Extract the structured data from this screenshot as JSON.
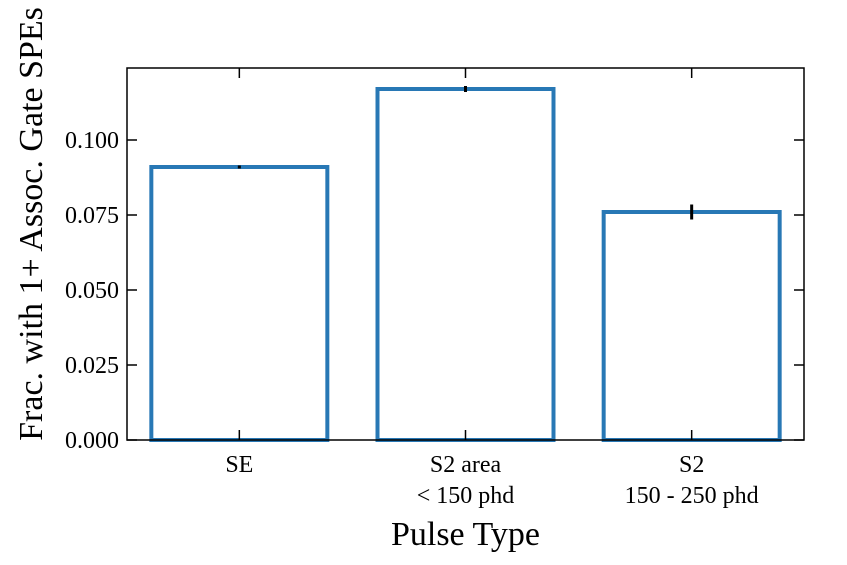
{
  "chart_data": {
    "type": "bar",
    "xlabel": "Pulse Type",
    "ylabel": "Frac. with 1+ Assoc. Gate SPEs",
    "categories": [
      [
        "SE"
      ],
      [
        "S2 area",
        "< 150 phd"
      ],
      [
        "S2",
        "150 - 250 phd"
      ]
    ],
    "values": [
      0.091,
      0.117,
      0.076
    ],
    "errors": [
      0.0005,
      0.001,
      0.0025
    ],
    "ylim": [
      0,
      0.124
    ],
    "yticks": [
      0.0,
      0.025,
      0.05,
      0.075,
      0.1
    ],
    "ytick_labels": [
      "0.000",
      "0.025",
      "0.050",
      "0.075",
      "0.100"
    ],
    "bar_style": "outline",
    "bar_edge_color": "#2878b5",
    "bar_fill_color": "#ffffff",
    "error_color": "#000000",
    "grid": false
  }
}
